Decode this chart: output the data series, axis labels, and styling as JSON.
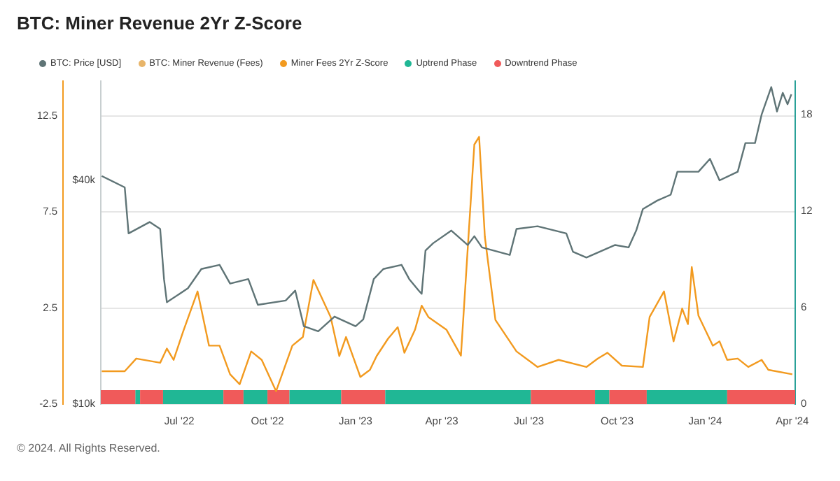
{
  "chart_data": {
    "type": "line",
    "title": "BTC: Miner Revenue 2Yr Z-Score",
    "xlim": [
      "2022-04-10",
      "2024-04-04"
    ],
    "xticks": [
      {
        "value": "2022-07-01",
        "label": "Jul '22"
      },
      {
        "value": "2022-10-01",
        "label": "Oct '22"
      },
      {
        "value": "2023-01-01",
        "label": "Jan '23"
      },
      {
        "value": "2023-04-01",
        "label": "Apr '23"
      },
      {
        "value": "2023-07-01",
        "label": "Jul '23"
      },
      {
        "value": "2023-10-01",
        "label": "Oct '23"
      },
      {
        "value": "2024-01-01",
        "label": "Jan '24"
      },
      {
        "value": "2024-04-01",
        "label": "Apr '24"
      }
    ],
    "ylim": [
      -2.5,
      14.3
    ],
    "yticks": [
      -2.5,
      2.5,
      7.5,
      12.5
    ],
    "y2lim": [
      0,
      20.1
    ],
    "y2ticks": [
      0,
      6,
      12,
      18
    ],
    "y3lim": [
      10000,
      74000
    ],
    "y3ticks": [
      {
        "value": 10000,
        "label": "$10k"
      },
      {
        "value": 40000,
        "label": "$40k"
      }
    ],
    "log": "y3",
    "grid": "y",
    "legend": "top left",
    "line_style": "solid",
    "marker": "none",
    "series": [
      {
        "name": "BTC: Price [USD]",
        "color": "#5f7476",
        "axis": "y3",
        "x": [
          "2022-04-11",
          "2022-05-05",
          "2022-05-09",
          "2022-05-31",
          "2022-06-11",
          "2022-06-15",
          "2022-06-18",
          "2022-07-10",
          "2022-07-24",
          "2022-08-12",
          "2022-08-23",
          "2022-09-11",
          "2022-09-21",
          "2022-10-20",
          "2022-10-30",
          "2022-11-08",
          "2022-11-23",
          "2022-12-10",
          "2023-01-01",
          "2023-01-09",
          "2023-01-20",
          "2023-01-30",
          "2023-02-18",
          "2023-02-26",
          "2023-03-08",
          "2023-03-11",
          "2023-03-15",
          "2023-03-23",
          "2023-04-11",
          "2023-04-28",
          "2023-05-05",
          "2023-05-13",
          "2023-06-11",
          "2023-06-18",
          "2023-07-10",
          "2023-08-09",
          "2023-08-16",
          "2023-08-30",
          "2023-09-29",
          "2023-10-13",
          "2023-10-21",
          "2023-10-28",
          "2023-11-12",
          "2023-11-26",
          "2023-12-03",
          "2023-12-25",
          "2024-01-06",
          "2024-01-16",
          "2024-02-04",
          "2024-02-12",
          "2024-02-22",
          "2024-02-29",
          "2024-03-10",
          "2024-03-16",
          "2024-03-22",
          "2024-03-27",
          "2024-03-31"
        ],
        "values": [
          41100,
          38300,
          28800,
          30900,
          29600,
          21700,
          18800,
          20500,
          23100,
          23700,
          21100,
          21700,
          18500,
          19000,
          20200,
          16200,
          15700,
          17200,
          16200,
          16900,
          21700,
          23100,
          23700,
          21700,
          20200,
          19800,
          25900,
          27100,
          29300,
          26800,
          28300,
          26400,
          25200,
          29600,
          30100,
          28800,
          25700,
          24800,
          26800,
          26400,
          29300,
          33500,
          35300,
          36600,
          42200,
          42200,
          45700,
          40000,
          42200,
          50400,
          50400,
          60200,
          71300,
          61300,
          68800,
          64100,
          68200
        ]
      },
      {
        "name": "BTC: Miner Revenue (Fees)",
        "color": "#e8b56a",
        "axis": "y2"
      },
      {
        "name": "Miner Fees 2Yr Z-Score",
        "color": "#f29a1f",
        "axis": "y",
        "x": [
          "2022-04-11",
          "2022-05-05",
          "2022-05-17",
          "2022-06-11",
          "2022-06-18",
          "2022-06-25",
          "2022-07-05",
          "2022-07-20",
          "2022-08-01",
          "2022-08-12",
          "2022-08-23",
          "2022-09-02",
          "2022-09-14",
          "2022-09-25",
          "2022-10-10",
          "2022-10-27",
          "2022-11-07",
          "2022-11-18",
          "2022-12-06",
          "2022-12-15",
          "2022-12-22",
          "2023-01-06",
          "2023-01-16",
          "2023-01-23",
          "2023-02-04",
          "2023-02-14",
          "2023-02-21",
          "2023-03-04",
          "2023-03-11",
          "2023-03-18",
          "2023-04-06",
          "2023-04-21",
          "2023-05-05",
          "2023-05-10",
          "2023-05-16",
          "2023-05-27",
          "2023-06-18",
          "2023-07-10",
          "2023-08-01",
          "2023-08-30",
          "2023-09-11",
          "2023-09-21",
          "2023-10-06",
          "2023-10-28",
          "2023-11-04",
          "2023-11-19",
          "2023-11-29",
          "2023-12-08",
          "2023-12-14",
          "2023-12-18",
          "2023-12-25",
          "2024-01-09",
          "2024-01-16",
          "2024-01-24",
          "2024-02-04",
          "2024-02-15",
          "2024-02-29",
          "2024-03-07",
          "2024-04-01"
        ],
        "values": [
          -0.79,
          -0.79,
          -0.13,
          -0.35,
          0.39,
          -0.2,
          1.28,
          3.36,
          0.54,
          0.54,
          -0.95,
          -1.47,
          0.24,
          -0.2,
          -1.83,
          0.54,
          0.99,
          3.96,
          2.03,
          0,
          0.99,
          -1.09,
          -0.72,
          0,
          0.91,
          1.5,
          0.17,
          1.36,
          2.62,
          2.03,
          1.36,
          0.02,
          11,
          11.4,
          6.19,
          1.88,
          0.24,
          -0.57,
          -0.2,
          -0.57,
          -0.13,
          0.17,
          -0.5,
          -0.57,
          2.03,
          3.36,
          0.76,
          2.47,
          1.66,
          4.63,
          2.1,
          0.54,
          0.76,
          -0.2,
          -0.13,
          -0.57,
          -0.2,
          -0.72,
          -0.95
        ]
      }
    ],
    "bands": [
      {
        "axis": "x",
        "from": "2022-05-16",
        "to": "2022-05-21",
        "label": "Uptrend Phase",
        "color": "#20b795"
      },
      {
        "axis": "x",
        "from": "2022-04-10",
        "to": "2022-05-16",
        "label": "Downtrend Phase",
        "color": "#f05a5a"
      },
      {
        "axis": "x",
        "from": "2022-05-21",
        "to": "2022-06-14",
        "color": "#f05a5a"
      },
      {
        "axis": "x",
        "from": "2022-06-14",
        "to": "2022-08-16",
        "color": "#20b795"
      },
      {
        "axis": "x",
        "from": "2022-08-16",
        "to": "2022-09-06",
        "color": "#f05a5a"
      },
      {
        "axis": "x",
        "from": "2022-09-06",
        "to": "2022-10-01",
        "color": "#20b795"
      },
      {
        "axis": "x",
        "from": "2022-10-01",
        "to": "2022-10-24",
        "color": "#f05a5a"
      },
      {
        "axis": "x",
        "from": "2022-10-24",
        "to": "2022-12-17",
        "color": "#20b795"
      },
      {
        "axis": "x",
        "from": "2022-12-17",
        "to": "2023-02-01",
        "color": "#f05a5a"
      },
      {
        "axis": "x",
        "from": "2023-02-01",
        "to": "2023-07-03",
        "color": "#20b795"
      },
      {
        "axis": "x",
        "from": "2023-07-03",
        "to": "2023-09-08",
        "color": "#f05a5a"
      },
      {
        "axis": "x",
        "from": "2023-09-08",
        "to": "2023-09-23",
        "color": "#20b795"
      },
      {
        "axis": "x",
        "from": "2023-09-23",
        "to": "2023-11-01",
        "color": "#f05a5a"
      },
      {
        "axis": "x",
        "from": "2023-11-01",
        "to": "2024-01-24",
        "color": "#20b795"
      },
      {
        "axis": "x",
        "from": "2024-01-24",
        "to": "2024-04-04",
        "color": "#f05a5a"
      }
    ],
    "annotations": [
      "© 2024. All Rights Reserved."
    ]
  }
}
